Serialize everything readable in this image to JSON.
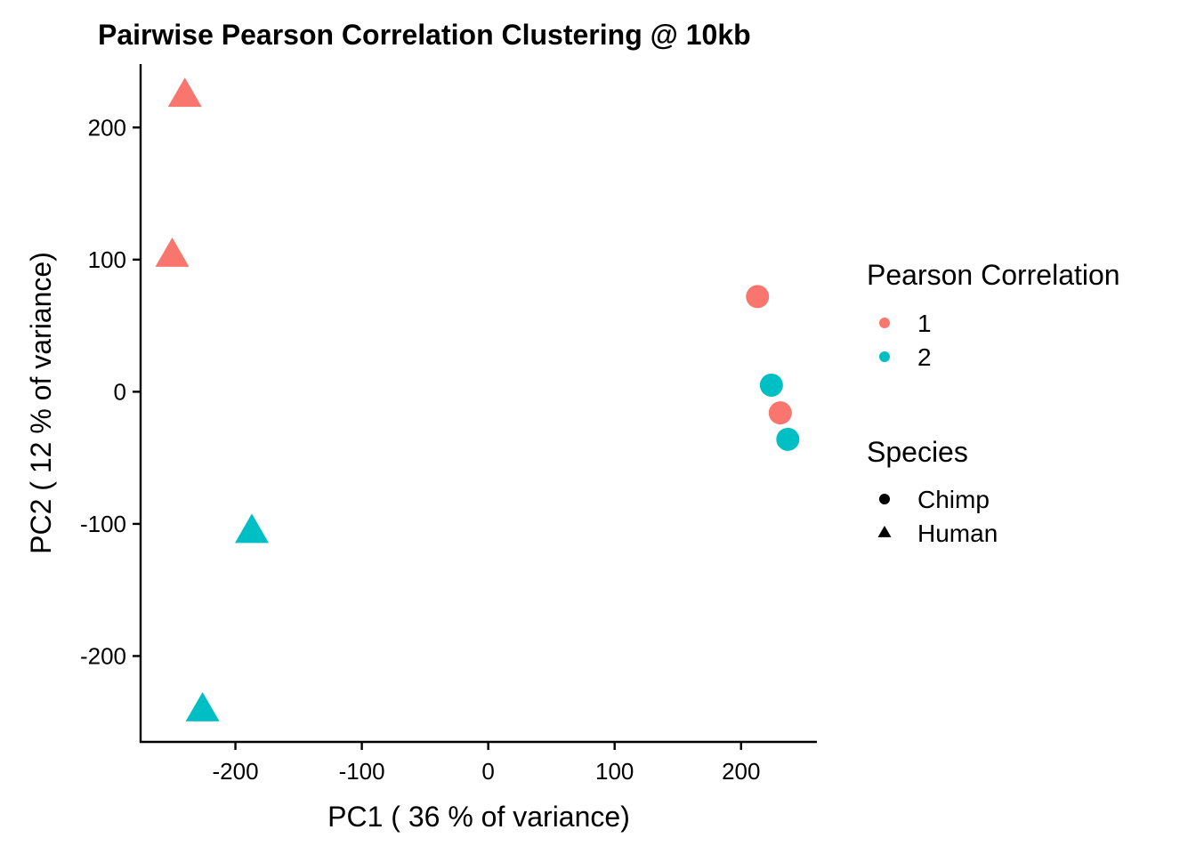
{
  "chart_data": {
    "type": "scatter",
    "title": "Pairwise Pearson Correlation Clustering @ 10kb",
    "xlabel": "PC1 ( 36 % of variance)",
    "ylabel": "PC2 ( 12 % of variance)",
    "xlim": [
      -275,
      260
    ],
    "ylim": [
      -265,
      248
    ],
    "xticks": [
      -200,
      -100,
      0,
      100,
      200
    ],
    "xtick_labels": [
      "-200",
      "-100",
      "0",
      "100",
      "200"
    ],
    "yticks": [
      -200,
      -100,
      0,
      100,
      200
    ],
    "ytick_labels": [
      "-200",
      "-100",
      "0",
      "100",
      "200"
    ],
    "grid": false,
    "legend_placement": "right",
    "color_legend": {
      "title": "Pearson Correlation",
      "entries": [
        {
          "label": "1",
          "color": "#F8766D"
        },
        {
          "label": "2",
          "color": "#00BFC4"
        }
      ]
    },
    "shape_legend": {
      "title": "Species",
      "entries": [
        {
          "label": "Chimp",
          "shape": "circle"
        },
        {
          "label": "Human",
          "shape": "triangle"
        }
      ]
    },
    "points": [
      {
        "x": -240,
        "y": 224,
        "group": "1",
        "species": "Human"
      },
      {
        "x": -250,
        "y": 103,
        "group": "1",
        "species": "Human"
      },
      {
        "x": -187,
        "y": -106,
        "group": "2",
        "species": "Human"
      },
      {
        "x": -226,
        "y": -241,
        "group": "2",
        "species": "Human"
      },
      {
        "x": 213,
        "y": 72,
        "group": "1",
        "species": "Chimp"
      },
      {
        "x": 224,
        "y": 5,
        "group": "2",
        "species": "Chimp"
      },
      {
        "x": 231,
        "y": -16,
        "group": "1",
        "species": "Chimp"
      },
      {
        "x": 237,
        "y": -36,
        "group": "2",
        "species": "Chimp"
      }
    ]
  }
}
